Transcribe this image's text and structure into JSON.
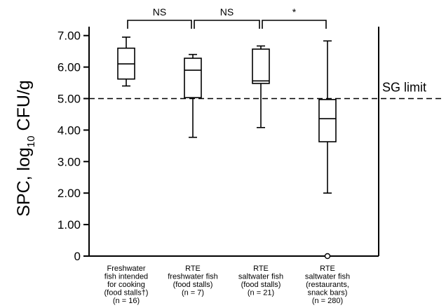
{
  "chart_data": {
    "type": "box",
    "ylabel_prefix": "SPC, log",
    "ylabel_sub": "10",
    "ylabel_suffix": " CFU/g",
    "ylim": [
      0,
      7.5
    ],
    "yticks": [
      "0",
      "1.00",
      "2.00",
      "3.00",
      "4.00",
      "5.00",
      "6.00",
      "7.00"
    ],
    "yticks_values": [
      0,
      1,
      2,
      3,
      4,
      5,
      6,
      7
    ],
    "grid": false,
    "reference_line": {
      "value": 5.0,
      "label": "SG limit",
      "style": "dashed"
    },
    "categories": [
      {
        "lines": [
          "Freshwater",
          "fish intended",
          "for cooking",
          "(food stalls†)",
          "(n = 16)"
        ]
      },
      {
        "lines": [
          "RTE",
          "freshwater fish",
          "(food stalls)",
          "(n = 7)"
        ]
      },
      {
        "lines": [
          "RTE",
          "saltwater fish",
          "(food stalls)",
          "(n = 21)"
        ]
      },
      {
        "lines": [
          "RTE",
          "saltwater fish",
          "(restaurants,",
          "snack bars)",
          "(n = 280)"
        ]
      }
    ],
    "boxes": [
      {
        "min": 5.4,
        "q1": 5.62,
        "median": 6.1,
        "q3": 6.6,
        "max": 6.95,
        "outliers": []
      },
      {
        "min": 3.77,
        "q1": 5.03,
        "median": 5.9,
        "q3": 6.28,
        "max": 6.4,
        "outliers": []
      },
      {
        "min": 4.08,
        "q1": 5.48,
        "median": 5.56,
        "q3": 6.57,
        "max": 6.67,
        "outliers": []
      },
      {
        "min": 2.0,
        "q1": 3.63,
        "median": 4.36,
        "q3": 4.97,
        "max": 6.83,
        "outliers": [
          0
        ]
      }
    ],
    "comparisons": [
      {
        "from": 0,
        "to": 1,
        "label": "NS"
      },
      {
        "from": 1,
        "to": 2,
        "label": "NS"
      },
      {
        "from": 2,
        "to": 3,
        "label": "*"
      }
    ]
  }
}
